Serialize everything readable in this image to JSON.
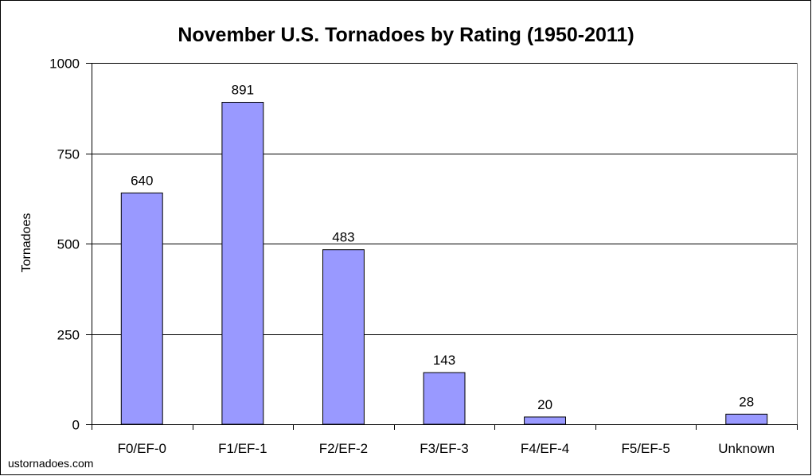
{
  "chart_data": {
    "type": "bar",
    "title": "November U.S. Tornadoes by Rating (1950-2011)",
    "xlabel": "",
    "ylabel": "Tornadoes",
    "categories": [
      "F0/EF-0",
      "F1/EF-1",
      "F2/EF-2",
      "F3/EF-3",
      "F4/EF-4",
      "F5/EF-5",
      "Unknown"
    ],
    "values": [
      640,
      891,
      483,
      143,
      20,
      0,
      28
    ],
    "data_labels": [
      "640",
      "891",
      "483",
      "143",
      "20",
      "",
      "28"
    ],
    "ylim": [
      0,
      1000
    ],
    "yticks": [
      0,
      250,
      500,
      750,
      1000
    ],
    "ytick_labels": [
      "0",
      "250",
      "500",
      "750",
      "1000"
    ],
    "grid": true,
    "legend": "none",
    "colors": {
      "bar": "#9999ff",
      "bar_edge": "#000000",
      "grid": "#000000"
    }
  },
  "source": "ustornadoes.com"
}
